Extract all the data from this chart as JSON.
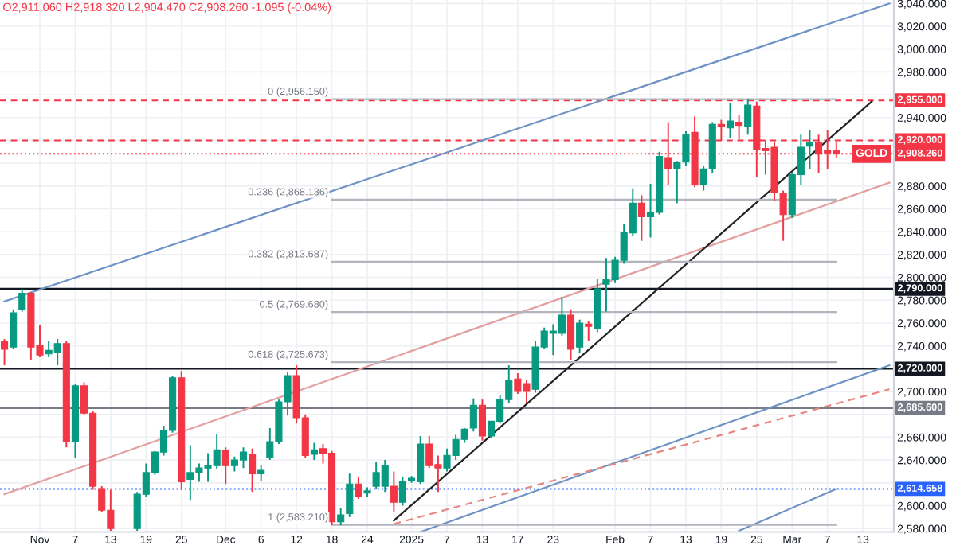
{
  "chart_data": {
    "type": "candlestick",
    "title": "O2,911.060 H2,918.320 L2,904.470 C2,908.260 -1.095 (-0.04%)",
    "categories": [
      null,
      null,
      null,
      null,
      "Nov",
      null,
      null,
      null,
      "7",
      null,
      null,
      null,
      "13",
      null,
      null,
      null,
      "19",
      null,
      null,
      null,
      "25",
      null,
      null,
      null,
      null,
      "Dec",
      null,
      null,
      null,
      "6",
      null,
      null,
      null,
      "12",
      null,
      null,
      null,
      "18",
      null,
      null,
      null,
      "24",
      null,
      null,
      null,
      null,
      "2025",
      null,
      null,
      null,
      "7",
      null,
      null,
      null,
      "13",
      null,
      null,
      null,
      "17",
      null,
      null,
      null,
      "23",
      null,
      null,
      null,
      null,
      null,
      null,
      "Feb",
      null,
      null,
      null,
      "7",
      null,
      null,
      null,
      "13",
      null,
      null,
      null,
      "19",
      null,
      null,
      null,
      "25",
      null,
      null,
      null,
      "Mar",
      null,
      null,
      null,
      "7",
      null,
      null,
      null,
      "13",
      null,
      null,
      null
    ],
    "ohlc": [
      [
        2744,
        2746,
        2723,
        2737
      ],
      [
        2739,
        2772,
        2737,
        2769
      ],
      [
        2772,
        2790,
        2770,
        2786
      ],
      [
        2786,
        2787,
        2728,
        2739
      ],
      [
        2740,
        2758,
        2730,
        2732
      ],
      [
        2733,
        2744,
        2730,
        2736
      ],
      [
        2734,
        2746,
        2723,
        2742
      ],
      [
        2742,
        2744,
        2651,
        2656
      ],
      [
        2656,
        2707,
        2642,
        2705
      ],
      [
        2705,
        2708,
        2680,
        2681
      ],
      [
        2681,
        2683,
        2614,
        2617
      ],
      [
        2615,
        2617,
        2594,
        2596
      ],
      [
        2596,
        2614,
        2578,
        2580
      ],
      null,
      null,
      [
        2580,
        2612,
        2578,
        2610
      ],
      [
        2610,
        2637,
        2608,
        2629
      ],
      [
        2629,
        2648,
        2627,
        2647
      ],
      [
        2647,
        2670,
        2644,
        2666
      ],
      [
        2666,
        2714,
        2664,
        2712
      ],
      [
        2712,
        2718,
        2614,
        2621
      ],
      [
        2623,
        2653,
        2605,
        2629
      ],
      [
        2629,
        2637,
        2621,
        2633
      ],
      [
        2633,
        2646,
        2621,
        2635
      ],
      [
        2635,
        2663,
        2632,
        2649
      ],
      [
        2648,
        2651,
        2619,
        2635
      ],
      [
        2635,
        2643,
        2630,
        2640
      ],
      [
        2640,
        2651,
        2633,
        2647
      ],
      [
        2645,
        2650,
        2612,
        2628
      ],
      [
        2628,
        2635,
        2622,
        2631
      ],
      [
        2642,
        2668,
        2640,
        2656
      ],
      [
        2656,
        2693,
        2654,
        2691
      ],
      [
        2691,
        2717,
        2679,
        2714
      ],
      [
        2714,
        2723,
        2672,
        2677
      ],
      [
        2677,
        2680,
        2642,
        2644
      ],
      [
        2645,
        2655,
        2640,
        2649
      ],
      [
        2650,
        2654,
        2637,
        2646
      ],
      [
        2646,
        2648,
        2583,
        2586
      ],
      [
        2586,
        2598,
        2583,
        2592
      ],
      [
        2593,
        2628,
        2590,
        2619
      ],
      [
        2619,
        2625,
        2606,
        2608
      ],
      [
        2611,
        2616,
        2608,
        2613
      ],
      [
        2617,
        2638,
        2615,
        2629
      ],
      [
        2617,
        2640,
        2612,
        2635
      ],
      [
        2617,
        2630,
        2594,
        2603
      ],
      [
        2603,
        2625,
        2600,
        2621
      ],
      [
        2622,
        2626,
        2620,
        2624
      ],
      [
        2621,
        2661,
        2619,
        2654
      ],
      [
        2654,
        2661,
        2633,
        2635
      ],
      [
        2636,
        2644,
        2612,
        2633
      ],
      [
        2633,
        2650,
        2630,
        2644
      ],
      [
        2644,
        2662,
        2640,
        2658
      ],
      [
        2658,
        2668,
        2655,
        2667
      ],
      [
        2668,
        2694,
        2665,
        2688
      ],
      [
        2688,
        2693,
        2657,
        2661
      ],
      [
        2661,
        2674,
        2659,
        2674
      ],
      [
        2674,
        2697,
        2672,
        2693
      ],
      [
        2693,
        2723,
        2690,
        2710
      ],
      [
        2711,
        2716,
        2698,
        2700
      ],
      [
        2707,
        2710,
        2690,
        2700
      ],
      [
        2702,
        2744,
        2699,
        2739
      ],
      [
        2739,
        2756,
        2737,
        2753
      ],
      [
        2751,
        2759,
        2732,
        2753
      ],
      [
        2751,
        2783,
        2749,
        2767
      ],
      [
        2767,
        2772,
        2728,
        2737
      ],
      [
        2739,
        2763,
        2734,
        2760
      ],
      [
        2759,
        2762,
        2744,
        2757
      ],
      [
        2755,
        2799,
        2752,
        2790
      ],
      [
        2794,
        2817,
        2770,
        2798
      ],
      [
        2798,
        2818,
        2795,
        2815
      ],
      [
        2815,
        2847,
        2812,
        2839
      ],
      [
        2839,
        2878,
        2836,
        2865
      ],
      [
        2865,
        2872,
        2832,
        2853
      ],
      [
        2853,
        2882,
        2835,
        2857
      ],
      [
        2857,
        2910,
        2855,
        2906
      ],
      [
        2905,
        2936,
        2881,
        2895
      ],
      [
        2895,
        2902,
        2865,
        2901
      ],
      [
        2901,
        2928,
        2898,
        2925
      ],
      [
        2927,
        2941,
        2879,
        2881
      ],
      [
        2881,
        2898,
        2876,
        2895
      ],
      [
        2895,
        2936,
        2891,
        2934
      ],
      [
        2934,
        2938,
        2920,
        2932
      ],
      [
        2931,
        2953,
        2922,
        2937
      ],
      [
        2936,
        2942,
        2921,
        2933
      ],
      [
        2932,
        2956,
        2925,
        2951
      ],
      [
        2950,
        2954,
        2888,
        2912
      ],
      [
        2913,
        2920,
        2890,
        2911
      ],
      [
        2914,
        2919,
        2867,
        2874
      ],
      [
        2874,
        2876,
        2832,
        2855
      ],
      [
        2855,
        2892,
        2852,
        2890
      ],
      [
        2890,
        2925,
        2881,
        2914
      ],
      [
        2915,
        2929,
        2895,
        2918
      ],
      [
        2918,
        2925,
        2891,
        2908
      ],
      [
        2911,
        2929,
        2895,
        2909
      ],
      [
        2911.06,
        2918.32,
        2904.47,
        2908.26
      ],
      null,
      null,
      null,
      null,
      null,
      null
    ],
    "series": [
      {
        "type": "line",
        "color": "#6f93c4",
        "values": [
          2779,
          null,
          null,
          null,
          null,
          null,
          null,
          null,
          null,
          null,
          null,
          null,
          null,
          null,
          null,
          null,
          null,
          null,
          null,
          null,
          null,
          null,
          null,
          null,
          null,
          null,
          null,
          null,
          null,
          null,
          null,
          null,
          null,
          null,
          null,
          null,
          null,
          null,
          null,
          null,
          null,
          null,
          null,
          null,
          null,
          null,
          null,
          null,
          null,
          null,
          null,
          null,
          null,
          null,
          null,
          null,
          null,
          null,
          null,
          null,
          null,
          null,
          null,
          null,
          null,
          null,
          null,
          null,
          null,
          null,
          null,
          null,
          null,
          null,
          null,
          null,
          null,
          null,
          null,
          null,
          null,
          null,
          null,
          null,
          null,
          null,
          null,
          null,
          null,
          null,
          null,
          null,
          null,
          null,
          null,
          null,
          null,
          null,
          null,
          null,
          3040
        ]
      },
      {
        "type": "line",
        "color": "#e3a0a0",
        "values": [
          2610,
          null,
          null,
          null,
          null,
          null,
          null,
          null,
          null,
          null,
          null,
          null,
          null,
          null,
          null,
          null,
          null,
          null,
          null,
          null,
          null,
          null,
          null,
          null,
          null,
          null,
          null,
          null,
          null,
          null,
          null,
          null,
          null,
          null,
          null,
          null,
          null,
          null,
          null,
          null,
          null,
          null,
          null,
          null,
          null,
          null,
          null,
          null,
          null,
          null,
          null,
          null,
          null,
          null,
          null,
          null,
          null,
          null,
          null,
          null,
          null,
          null,
          null,
          null,
          null,
          null,
          null,
          null,
          null,
          null,
          null,
          null,
          null,
          null,
          null,
          null,
          null,
          null,
          null,
          null,
          null,
          null,
          null,
          null,
          null,
          null,
          null,
          null,
          null,
          null,
          null,
          null,
          null,
          null,
          null,
          null,
          null,
          null,
          null,
          null,
          2883
        ]
      },
      {
        "type": "line",
        "color": "#222222",
        "values": [
          null,
          null,
          null,
          null,
          null,
          null,
          null,
          null,
          null,
          null,
          null,
          null,
          null,
          null,
          null,
          null,
          null,
          null,
          null,
          null,
          null,
          null,
          null,
          null,
          null,
          null,
          null,
          null,
          null,
          null,
          null,
          null,
          null,
          null,
          null,
          null,
          null,
          null,
          null,
          null,
          null,
          null,
          null,
          null,
          2587,
          null,
          null,
          null,
          null,
          null,
          null,
          null,
          null,
          null,
          null,
          null,
          null,
          null,
          null,
          null,
          null,
          null,
          null,
          null,
          null,
          null,
          null,
          null,
          null,
          null,
          null,
          null,
          null,
          null,
          null,
          null,
          null,
          null,
          null,
          null,
          null,
          null,
          null,
          null,
          null,
          null,
          null,
          null,
          null,
          null,
          null,
          null,
          null,
          null,
          null,
          null,
          null,
          null,
          2954,
          null,
          null
        ]
      },
      {
        "type": "line",
        "color": "#6f93c4",
        "values": [
          null,
          null,
          null,
          null,
          null,
          null,
          null,
          null,
          null,
          null,
          null,
          null,
          null,
          null,
          null,
          null,
          null,
          null,
          null,
          null,
          null,
          null,
          null,
          null,
          null,
          null,
          null,
          null,
          null,
          null,
          null,
          null,
          null,
          null,
          null,
          null,
          null,
          null,
          null,
          null,
          null,
          null,
          null,
          null,
          null,
          null,
          null,
          2577,
          null,
          null,
          null,
          null,
          null,
          null,
          null,
          null,
          null,
          null,
          null,
          null,
          null,
          null,
          null,
          null,
          null,
          null,
          null,
          null,
          null,
          null,
          null,
          null,
          null,
          null,
          null,
          null,
          null,
          null,
          null,
          null,
          null,
          null,
          null,
          null,
          null,
          null,
          null,
          null,
          null,
          null,
          null,
          null,
          null,
          null,
          null,
          null,
          null,
          null,
          null,
          null,
          2723
        ]
      },
      {
        "type": "line",
        "color": "#e8877f",
        "line_style": "dashed",
        "values": [
          null,
          null,
          null,
          null,
          null,
          null,
          null,
          null,
          null,
          null,
          null,
          null,
          null,
          null,
          null,
          null,
          null,
          null,
          null,
          null,
          null,
          null,
          null,
          null,
          null,
          null,
          null,
          null,
          null,
          null,
          null,
          null,
          null,
          null,
          null,
          null,
          null,
          null,
          null,
          null,
          null,
          null,
          null,
          null,
          2584,
          null,
          null,
          null,
          null,
          null,
          null,
          null,
          null,
          null,
          null,
          null,
          null,
          null,
          null,
          null,
          null,
          null,
          null,
          null,
          null,
          null,
          null,
          null,
          null,
          null,
          null,
          null,
          null,
          null,
          null,
          null,
          null,
          null,
          null,
          null,
          null,
          null,
          null,
          null,
          null,
          null,
          null,
          null,
          null,
          null,
          null,
          null,
          null,
          null,
          null,
          null,
          null,
          null,
          null,
          null,
          2702
        ]
      },
      {
        "type": "line",
        "color": "#6f93c4",
        "values": [
          null,
          null,
          null,
          null,
          null,
          null,
          null,
          null,
          null,
          null,
          null,
          null,
          null,
          null,
          null,
          null,
          null,
          null,
          null,
          null,
          null,
          null,
          null,
          null,
          null,
          null,
          null,
          null,
          null,
          null,
          null,
          null,
          null,
          null,
          null,
          null,
          null,
          null,
          null,
          null,
          null,
          null,
          null,
          null,
          null,
          null,
          null,
          null,
          null,
          null,
          null,
          null,
          null,
          null,
          null,
          null,
          null,
          null,
          null,
          null,
          null,
          null,
          null,
          null,
          null,
          null,
          null,
          null,
          null,
          null,
          null,
          null,
          null,
          null,
          null,
          null,
          null,
          null,
          null,
          null,
          null,
          null,
          null,
          2578,
          null,
          null,
          null,
          null,
          null,
          null,
          null,
          null,
          null,
          null,
          2614.658,
          null,
          null,
          null,
          null,
          null,
          null
        ]
      },
      {
        "type": "line",
        "color": "#b2b5be",
        "values": [
          null,
          null,
          null,
          null,
          null,
          null,
          null,
          null,
          null,
          null,
          null,
          null,
          null,
          null,
          null,
          null,
          null,
          null,
          null,
          null,
          null,
          null,
          null,
          null,
          null,
          null,
          null,
          null,
          null,
          null,
          null,
          null,
          null,
          null,
          null,
          null,
          null,
          2956.15,
          null,
          null,
          null,
          null,
          null,
          null,
          null,
          null,
          null,
          null,
          null,
          null,
          null,
          null,
          null,
          null,
          null,
          null,
          null,
          null,
          null,
          null,
          null,
          null,
          null,
          null,
          null,
          null,
          null,
          null,
          null,
          null,
          null,
          null,
          null,
          null,
          null,
          null,
          null,
          null,
          null,
          null,
          null,
          null,
          null,
          null,
          null,
          null,
          null,
          null,
          null,
          null,
          null,
          null,
          null,
          null,
          2956.15,
          null,
          null,
          null,
          null,
          null,
          null
        ]
      },
      {
        "type": "line",
        "color": "#b2b5be",
        "values": [
          null,
          null,
          null,
          null,
          null,
          null,
          null,
          null,
          null,
          null,
          null,
          null,
          null,
          null,
          null,
          null,
          null,
          null,
          null,
          null,
          null,
          null,
          null,
          null,
          null,
          null,
          null,
          null,
          null,
          null,
          null,
          null,
          null,
          null,
          null,
          null,
          null,
          2868.136,
          null,
          null,
          null,
          null,
          null,
          null,
          null,
          null,
          null,
          null,
          null,
          null,
          null,
          null,
          null,
          null,
          null,
          null,
          null,
          null,
          null,
          null,
          null,
          null,
          null,
          null,
          null,
          null,
          null,
          null,
          null,
          null,
          null,
          null,
          null,
          null,
          null,
          null,
          null,
          null,
          null,
          null,
          null,
          null,
          null,
          null,
          null,
          null,
          null,
          null,
          null,
          null,
          null,
          null,
          null,
          null,
          2868.136,
          null,
          null,
          null,
          null,
          null,
          null
        ]
      },
      {
        "type": "line",
        "color": "#b2b5be",
        "values": [
          null,
          null,
          null,
          null,
          null,
          null,
          null,
          null,
          null,
          null,
          null,
          null,
          null,
          null,
          null,
          null,
          null,
          null,
          null,
          null,
          null,
          null,
          null,
          null,
          null,
          null,
          null,
          null,
          null,
          null,
          null,
          null,
          null,
          null,
          null,
          null,
          null,
          2813.687,
          null,
          null,
          null,
          null,
          null,
          null,
          null,
          null,
          null,
          null,
          null,
          null,
          null,
          null,
          null,
          null,
          null,
          null,
          null,
          null,
          null,
          null,
          null,
          null,
          null,
          null,
          null,
          null,
          null,
          null,
          null,
          null,
          null,
          null,
          null,
          null,
          null,
          null,
          null,
          null,
          null,
          null,
          null,
          null,
          null,
          null,
          null,
          null,
          null,
          null,
          null,
          null,
          null,
          null,
          null,
          null,
          2813.687,
          null,
          null,
          null,
          null,
          null,
          null
        ]
      },
      {
        "type": "line",
        "color": "#b2b5be",
        "values": [
          null,
          null,
          null,
          null,
          null,
          null,
          null,
          null,
          null,
          null,
          null,
          null,
          null,
          null,
          null,
          null,
          null,
          null,
          null,
          null,
          null,
          null,
          null,
          null,
          null,
          null,
          null,
          null,
          null,
          null,
          null,
          null,
          null,
          null,
          null,
          null,
          null,
          2769.68,
          null,
          null,
          null,
          null,
          null,
          null,
          null,
          null,
          null,
          null,
          null,
          null,
          null,
          null,
          null,
          null,
          null,
          null,
          null,
          null,
          null,
          null,
          null,
          null,
          null,
          null,
          null,
          null,
          null,
          null,
          null,
          null,
          null,
          null,
          null,
          null,
          null,
          null,
          null,
          null,
          null,
          null,
          null,
          null,
          null,
          null,
          null,
          null,
          null,
          null,
          null,
          null,
          null,
          null,
          null,
          null,
          2769.68,
          null,
          null,
          null,
          null,
          null,
          null
        ]
      },
      {
        "type": "line",
        "color": "#b2b5be",
        "values": [
          null,
          null,
          null,
          null,
          null,
          null,
          null,
          null,
          null,
          null,
          null,
          null,
          null,
          null,
          null,
          null,
          null,
          null,
          null,
          null,
          null,
          null,
          null,
          null,
          null,
          null,
          null,
          null,
          null,
          null,
          null,
          null,
          null,
          null,
          null,
          null,
          null,
          2725.673,
          null,
          null,
          null,
          null,
          null,
          null,
          null,
          null,
          null,
          null,
          null,
          null,
          null,
          null,
          null,
          null,
          null,
          null,
          null,
          null,
          null,
          null,
          null,
          null,
          null,
          null,
          null,
          null,
          null,
          null,
          null,
          null,
          null,
          null,
          null,
          null,
          null,
          null,
          null,
          null,
          null,
          null,
          null,
          null,
          null,
          null,
          null,
          null,
          null,
          null,
          null,
          null,
          null,
          null,
          null,
          null,
          2725.673,
          null,
          null,
          null,
          null,
          null,
          null
        ]
      },
      {
        "type": "line",
        "color": "#b2b5be",
        "values": [
          null,
          null,
          null,
          null,
          null,
          null,
          null,
          null,
          null,
          null,
          null,
          null,
          null,
          null,
          null,
          null,
          null,
          null,
          null,
          null,
          null,
          null,
          null,
          null,
          null,
          null,
          null,
          null,
          null,
          null,
          null,
          null,
          null,
          null,
          null,
          null,
          null,
          2583.21,
          null,
          null,
          null,
          null,
          null,
          null,
          null,
          null,
          null,
          null,
          null,
          null,
          null,
          null,
          null,
          null,
          null,
          null,
          null,
          null,
          null,
          null,
          null,
          null,
          null,
          null,
          null,
          null,
          null,
          null,
          null,
          null,
          null,
          null,
          null,
          null,
          null,
          null,
          null,
          null,
          null,
          null,
          null,
          null,
          null,
          null,
          null,
          null,
          null,
          null,
          null,
          null,
          null,
          null,
          null,
          null,
          2583.21,
          null,
          null,
          null,
          null,
          null,
          null
        ]
      }
    ],
    "ylim": [
      2577,
      3043
    ],
    "yticks": [
      {
        "value": 2580,
        "label": "2,580.000"
      },
      {
        "value": 2600,
        "label": "2,600.000"
      },
      {
        "value": 2620,
        "label": null
      },
      {
        "value": 2640,
        "label": "2,640.000"
      },
      {
        "value": 2660,
        "label": "2,660.000"
      },
      {
        "value": 2680,
        "label": null
      },
      {
        "value": 2700,
        "label": "2,700.000"
      },
      {
        "value": 2720,
        "label": null
      },
      {
        "value": 2740,
        "label": "2,740.000"
      },
      {
        "value": 2760,
        "label": "2,760.000"
      },
      {
        "value": 2780,
        "label": "2,780.000"
      },
      {
        "value": 2800,
        "label": "2,800.000"
      },
      {
        "value": 2820,
        "label": "2,820.000"
      },
      {
        "value": 2840,
        "label": "2,840.000"
      },
      {
        "value": 2860,
        "label": "2,860.000"
      },
      {
        "value": 2880,
        "label": "2,880.000"
      },
      {
        "value": 2900,
        "label": null
      },
      {
        "value": 2920,
        "label": null
      },
      {
        "value": 2940,
        "label": "2,940.000"
      },
      {
        "value": 2960,
        "label": null
      },
      {
        "value": 2980,
        "label": "2,980.000"
      },
      {
        "value": 3000,
        "label": "3,000.000"
      },
      {
        "value": 3020,
        "label": "3,020.000"
      },
      {
        "value": 3040,
        "label": "3,040.000"
      }
    ],
    "ref_lines": [
      {
        "axis": "y",
        "value": 2955,
        "label": "2,955.000",
        "color": "#f23645",
        "line_style": "dashed"
      },
      {
        "axis": "y",
        "value": 2920,
        "label": "2,920.000",
        "color": "#f23645",
        "line_style": "dashed"
      },
      {
        "axis": "y",
        "value": 2790,
        "label": "2,790.000",
        "color": "#131722"
      },
      {
        "axis": "y",
        "value": 2720,
        "label": "2,720.000",
        "color": "#131722"
      },
      {
        "axis": "y",
        "value": 2685.6,
        "label": "2,685.600",
        "color": "#787b86"
      },
      {
        "axis": "y",
        "value": 2908.26,
        "label": "2,908.260",
        "color": "#f23645",
        "line_style": "dotted"
      },
      {
        "axis": "y",
        "value": 2614.658,
        "label": "2,614.658",
        "color": "#2962ff",
        "line_style": "dotted"
      }
    ],
    "annotations": [
      {
        "text": "0 (2,956.150)",
        "x": "18",
        "y": 2956.15
      },
      {
        "text": "0.236 (2,868.136)",
        "x": "18",
        "y": 2868.136
      },
      {
        "text": "0.382 (2,813.687)",
        "x": "18",
        "y": 2813.687
      },
      {
        "text": "0.5 (2,769.680)",
        "x": "18",
        "y": 2769.68
      },
      {
        "text": "0.618 (2,725.673)",
        "x": "18",
        "y": 2725.673
      },
      {
        "text": "1 (2,583.210)",
        "x": "18",
        "y": 2583.21
      },
      {
        "text": "GOLD",
        "y": 2908.26
      }
    ],
    "grid": true
  }
}
